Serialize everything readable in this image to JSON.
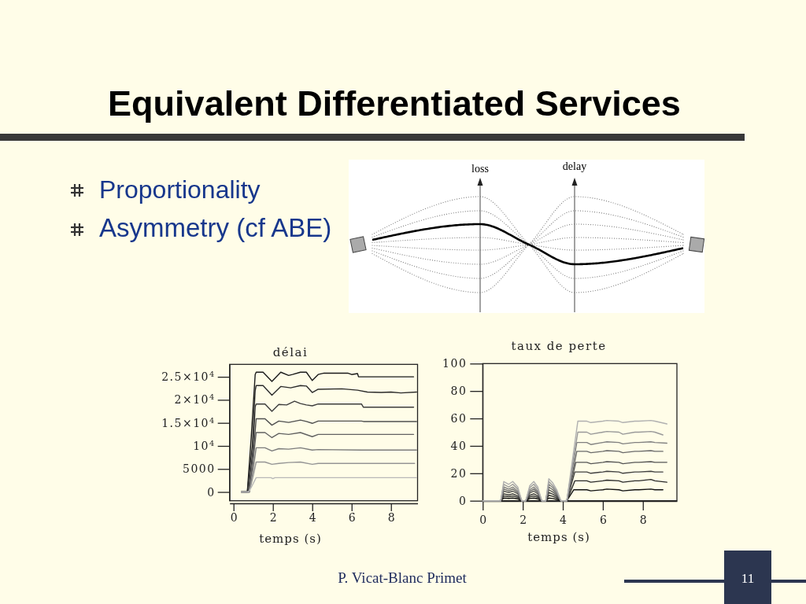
{
  "chart_data": [
    {
      "type": "line",
      "title": "délai",
      "xlabel": "temps (s)",
      "xlim": [
        -0.2,
        9.35
      ],
      "ylim": [
        -1900,
        27700
      ],
      "xticks": [
        0,
        2,
        4,
        6,
        8
      ],
      "yticks": [
        0,
        5000,
        {
          "value": 10000,
          "label": "10$^{4}$"
        },
        {
          "value": 15000,
          "label": "1.5×10$^{4}$"
        },
        {
          "value": 20000,
          "label": "2×10$^{4}$"
        },
        {
          "value": 25000,
          "label": "2.5×10$^{4}$"
        }
      ],
      "series": [
        {
          "color": "#1a1a1a",
          "x": [
            0.4,
            0.7,
            0.9,
            1.1,
            1.15,
            1.5,
            1.95,
            2.4,
            2.8,
            3.0,
            3.4,
            3.7,
            4.0,
            4.3,
            4.6,
            5.8,
            6.0,
            6.3,
            6.35,
            9.15
          ],
          "values": [
            0,
            0,
            12000,
            25500,
            26000,
            26000,
            24000,
            26000,
            25300,
            25500,
            26000,
            26000,
            24200,
            25500,
            25800,
            25800,
            25500,
            25700,
            25000,
            25000
          ]
        },
        {
          "color": "#2b2b2b",
          "x": [
            0.4,
            0.7,
            0.95,
            1.1,
            1.15,
            1.5,
            1.95,
            2.4,
            2.9,
            3.4,
            3.7,
            4.0,
            4.3,
            5.5,
            6.3,
            6.8,
            7.5,
            8.0,
            8.5,
            9.3
          ],
          "values": [
            0,
            0,
            10000,
            22000,
            23100,
            23100,
            21000,
            22900,
            22600,
            23100,
            23000,
            21600,
            22300,
            22400,
            22100,
            21700,
            21600,
            21700,
            21500,
            21700
          ]
        },
        {
          "color": "#3d3d3d",
          "x": [
            0.4,
            0.75,
            1.0,
            1.1,
            1.15,
            1.6,
            1.95,
            2.3,
            2.7,
            3.1,
            3.4,
            3.7,
            4.0,
            4.3,
            6.5,
            6.6,
            9.15
          ],
          "values": [
            0,
            0,
            10000,
            18500,
            19100,
            19100,
            17500,
            19000,
            18900,
            19700,
            19200,
            18900,
            18700,
            19100,
            19100,
            18400,
            18400
          ]
        },
        {
          "color": "#505050",
          "x": [
            0.4,
            0.8,
            1.0,
            1.15,
            1.6,
            1.95,
            2.3,
            2.8,
            3.4,
            3.7,
            4.0,
            4.3,
            6.5,
            6.6,
            9.3
          ],
          "values": [
            0,
            0,
            8000,
            15900,
            15900,
            14500,
            15400,
            15100,
            15600,
            15300,
            14900,
            15400,
            15400,
            15300,
            15300
          ]
        },
        {
          "color": "#626262",
          "x": [
            0.4,
            0.8,
            1.0,
            1.15,
            1.6,
            1.95,
            2.3,
            2.8,
            3.4,
            4.0,
            4.3,
            9.15
          ],
          "values": [
            0,
            0,
            7000,
            12900,
            12900,
            11800,
            12700,
            12500,
            12900,
            12000,
            12500,
            12500
          ]
        },
        {
          "color": "#7c7c7c",
          "x": [
            0.4,
            0.8,
            1.0,
            1.15,
            1.6,
            1.95,
            2.3,
            2.8,
            3.4,
            4.0,
            4.3,
            6.5,
            9.3
          ],
          "values": [
            0,
            0,
            5000,
            9600,
            9600,
            8900,
            9400,
            9300,
            9600,
            9100,
            9200,
            9100,
            9100
          ]
        },
        {
          "color": "#959595",
          "x": [
            0.4,
            0.8,
            1.0,
            1.15,
            1.6,
            1.95,
            2.3,
            2.8,
            3.4,
            4.0,
            4.3,
            9.2
          ],
          "values": [
            0,
            0,
            3500,
            6500,
            6500,
            6000,
            6200,
            6400,
            6500,
            6000,
            6200,
            6200
          ]
        },
        {
          "color": "#b8b8b8",
          "x": [
            0.4,
            0.75,
            0.9,
            1.15,
            1.9,
            2.0,
            2.1,
            9.3
          ],
          "values": [
            0,
            0,
            1000,
            3100,
            3100,
            2900,
            3100,
            3100
          ]
        }
      ]
    },
    {
      "type": "line",
      "title": "taux de perte",
      "xlabel": "temps (s)",
      "xlim": [
        0,
        9.7
      ],
      "ylim": [
        0,
        100
      ],
      "xticks": [
        0,
        2,
        4,
        6,
        8
      ],
      "yticks": [
        0,
        20,
        40,
        60,
        80,
        100
      ],
      "series": [
        {
          "color": "#111111",
          "x": [
            0,
            0.9,
            1.05,
            1.3,
            1.5,
            1.75,
            1.95,
            2.15,
            2.35,
            2.55,
            2.75,
            2.95,
            3.15,
            3.3,
            3.5,
            3.7,
            3.9,
            4.2,
            4.55,
            5.2,
            5.4,
            6.0,
            6.2,
            6.8,
            7.0,
            7.6,
            7.8,
            8.4,
            8.6,
            9.0
          ],
          "values": [
            0,
            0,
            2,
            1.7,
            2,
            1.4,
            0,
            0,
            1.6,
            2,
            1.4,
            0,
            0,
            2,
            1.6,
            1,
            0,
            0,
            8,
            8,
            7.2,
            8,
            8.5,
            8,
            7.2,
            8,
            8,
            8.5,
            8,
            8
          ]
        },
        {
          "color": "#2a2a2a",
          "x": [
            0,
            0.9,
            1.05,
            1.3,
            1.5,
            1.75,
            1.95,
            2.15,
            2.35,
            2.55,
            2.75,
            2.95,
            3.15,
            3.3,
            3.5,
            3.7,
            3.9,
            4.2,
            4.6,
            5.2,
            5.4,
            6.0,
            6.2,
            6.8,
            7.0,
            7.6,
            7.8,
            8.4,
            8.6,
            9.2
          ],
          "values": [
            0,
            0,
            3.5,
            3,
            3.5,
            2.5,
            0,
            0,
            2.8,
            3.5,
            2.5,
            0,
            0,
            4,
            3.2,
            2,
            0,
            0,
            14.5,
            14.5,
            13.5,
            14.5,
            15,
            14.5,
            13.5,
            14.5,
            14.5,
            15.5,
            14.5,
            13.5
          ]
        },
        {
          "color": "#404040",
          "x": [
            0,
            0.9,
            1.05,
            1.3,
            1.5,
            1.75,
            1.95,
            2.15,
            2.35,
            2.55,
            2.75,
            2.95,
            3.15,
            3.3,
            3.5,
            3.7,
            3.9,
            4.2,
            4.6,
            5.2,
            5.4,
            6.0,
            6.2,
            6.8,
            7.0,
            7.6,
            7.8,
            8.4,
            8.6,
            9.0
          ],
          "values": [
            0,
            0,
            5,
            4.3,
            5,
            3.5,
            0,
            0,
            4,
            5,
            3.5,
            0,
            0,
            6,
            4.8,
            3,
            0,
            0,
            21,
            21,
            20,
            21,
            21.5,
            21,
            20,
            21,
            21,
            21.5,
            21,
            21
          ]
        },
        {
          "color": "#555555",
          "x": [
            0,
            0.9,
            1.05,
            1.3,
            1.5,
            1.75,
            1.95,
            2.15,
            2.35,
            2.55,
            2.75,
            2.95,
            3.15,
            3.3,
            3.5,
            3.7,
            3.9,
            4.2,
            4.65,
            5.2,
            5.4,
            6.0,
            6.2,
            6.8,
            7.0,
            7.6,
            7.8,
            8.4,
            8.6,
            9.2
          ],
          "values": [
            0,
            0,
            7,
            6,
            7,
            5,
            0,
            0,
            5.6,
            7,
            5,
            0,
            0,
            8,
            6.4,
            4,
            0,
            0,
            28,
            28,
            27,
            28,
            28.5,
            28,
            27,
            28,
            28,
            28.5,
            28,
            28
          ]
        },
        {
          "color": "#6a6a6a",
          "x": [
            0,
            0.9,
            1.05,
            1.3,
            1.5,
            1.75,
            1.95,
            2.15,
            2.35,
            2.55,
            2.75,
            2.95,
            3.15,
            3.3,
            3.5,
            3.7,
            3.9,
            4.2,
            4.7,
            5.2,
            5.4,
            6.0,
            6.2,
            6.8,
            7.0,
            7.6,
            7.8,
            8.4,
            8.6,
            9.0
          ],
          "values": [
            0,
            0,
            8.5,
            7.2,
            8.5,
            6,
            0,
            0,
            6.8,
            8.5,
            6,
            0,
            0,
            10,
            8,
            5,
            0,
            0,
            36,
            36,
            35,
            36,
            36.5,
            36,
            35,
            36,
            36,
            36.5,
            36,
            36
          ]
        },
        {
          "color": "#808080",
          "x": [
            0,
            0.9,
            1.05,
            1.3,
            1.5,
            1.75,
            1.95,
            2.15,
            2.35,
            2.55,
            2.75,
            2.95,
            3.15,
            3.3,
            3.5,
            3.7,
            3.9,
            4.2,
            4.7,
            5.2,
            5.4,
            6.0,
            6.2,
            6.8,
            7.0,
            7.6,
            7.8,
            8.4,
            8.6,
            9.2
          ],
          "values": [
            0,
            0,
            10,
            8.5,
            10,
            7,
            0,
            0,
            8,
            10,
            7,
            0,
            0,
            12,
            9.6,
            6,
            0,
            0,
            42.5,
            42.5,
            41,
            42.5,
            43,
            42.5,
            41.5,
            42.5,
            42.5,
            43,
            42.5,
            42
          ]
        },
        {
          "color": "#999999",
          "x": [
            0,
            0.9,
            1.05,
            1.3,
            1.5,
            1.75,
            1.95,
            2.15,
            2.35,
            2.55,
            2.75,
            2.95,
            3.15,
            3.3,
            3.5,
            3.7,
            3.9,
            4.2,
            4.75,
            5.2,
            5.4,
            6.0,
            6.2,
            6.8,
            7.0,
            7.6,
            7.8,
            8.4,
            8.6,
            9.0
          ],
          "values": [
            0,
            0,
            12,
            10,
            12,
            8.5,
            0,
            0,
            9.6,
            12,
            8.5,
            0,
            0,
            14,
            11,
            7,
            0,
            0,
            50,
            50,
            48.5,
            50,
            50.5,
            50,
            48.5,
            50,
            50,
            50.5,
            50,
            48
          ]
        },
        {
          "color": "#b0b0b0",
          "x": [
            0,
            0.9,
            1.05,
            1.3,
            1.5,
            1.75,
            1.95,
            2.15,
            2.35,
            2.55,
            2.75,
            2.95,
            3.15,
            3.3,
            3.5,
            3.7,
            3.9,
            4.2,
            4.75,
            5.2,
            5.4,
            6.0,
            6.2,
            6.8,
            7.0,
            7.6,
            7.8,
            8.4,
            8.6,
            9.2
          ],
          "values": [
            0,
            0,
            14,
            12,
            14,
            10,
            0,
            0,
            11,
            14,
            10,
            0,
            0,
            16,
            13,
            8,
            0,
            0,
            58,
            58,
            57,
            58,
            58.5,
            58,
            57,
            58,
            58,
            58.5,
            58,
            56
          ]
        }
      ]
    },
    {
      "type": "other",
      "title": "Equivalent Differentiated Services",
      "annotations": [
        "Proportionality",
        "Asymmetry (cf ABE)",
        "loss",
        "delay",
        "P. Vicat-Blanc Primet",
        "11"
      ]
    }
  ]
}
